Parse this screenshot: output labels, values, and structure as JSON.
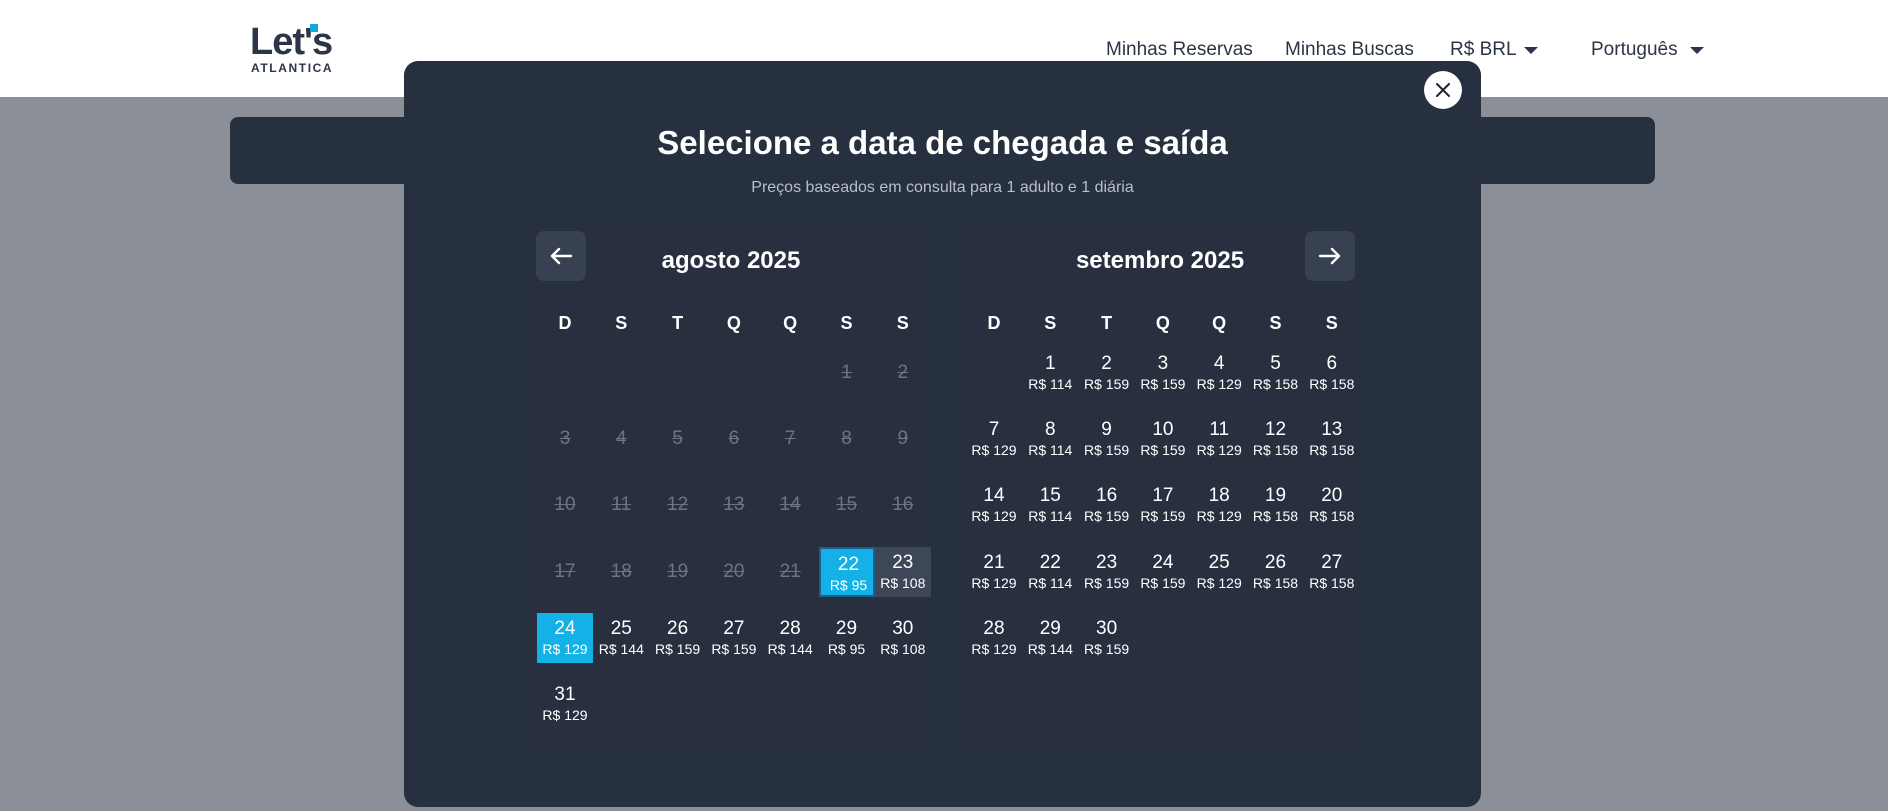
{
  "header": {
    "logo_main": "Let's",
    "logo_sub": "ATLANTICA",
    "nav": {
      "reservations": "Minhas Reservas",
      "searches": "Minhas Buscas",
      "currency": "R$ BRL",
      "language": "Português"
    }
  },
  "modal": {
    "title": "Selecione a data de chegada e saída",
    "subtitle": "Preços baseados em consulta para 1 adulto e 1 diária"
  },
  "weekdays": [
    "D",
    "S",
    "T",
    "Q",
    "Q",
    "S",
    "S"
  ],
  "months": [
    {
      "title": "agosto 2025",
      "first_weekday": 5,
      "days": [
        {
          "d": "1",
          "state": "past"
        },
        {
          "d": "2",
          "state": "past"
        },
        {
          "d": "3",
          "state": "past"
        },
        {
          "d": "4",
          "state": "past"
        },
        {
          "d": "5",
          "state": "past"
        },
        {
          "d": "6",
          "state": "past"
        },
        {
          "d": "7",
          "state": "past"
        },
        {
          "d": "8",
          "state": "past"
        },
        {
          "d": "9",
          "state": "past"
        },
        {
          "d": "10",
          "state": "past"
        },
        {
          "d": "11",
          "state": "past"
        },
        {
          "d": "12",
          "state": "past"
        },
        {
          "d": "13",
          "state": "past"
        },
        {
          "d": "14",
          "state": "past"
        },
        {
          "d": "15",
          "state": "past"
        },
        {
          "d": "16",
          "state": "past"
        },
        {
          "d": "17",
          "state": "past"
        },
        {
          "d": "18",
          "state": "past"
        },
        {
          "d": "19",
          "state": "past"
        },
        {
          "d": "20",
          "state": "past"
        },
        {
          "d": "21",
          "state": "past"
        },
        {
          "d": "22",
          "price": "R$ 95",
          "state": "checkin"
        },
        {
          "d": "23",
          "price": "R$ 108",
          "state": "range"
        },
        {
          "d": "24",
          "price": "R$ 129",
          "state": "checkout"
        },
        {
          "d": "25",
          "price": "R$ 144"
        },
        {
          "d": "26",
          "price": "R$ 159"
        },
        {
          "d": "27",
          "price": "R$ 159"
        },
        {
          "d": "28",
          "price": "R$ 144"
        },
        {
          "d": "29",
          "price": "R$ 95"
        },
        {
          "d": "30",
          "price": "R$ 108"
        },
        {
          "d": "31",
          "price": "R$ 129"
        }
      ]
    },
    {
      "title": "setembro 2025",
      "first_weekday": 1,
      "days": [
        {
          "d": "1",
          "price": "R$ 114"
        },
        {
          "d": "2",
          "price": "R$ 159"
        },
        {
          "d": "3",
          "price": "R$ 159"
        },
        {
          "d": "4",
          "price": "R$ 129"
        },
        {
          "d": "5",
          "price": "R$ 158"
        },
        {
          "d": "6",
          "price": "R$ 158"
        },
        {
          "d": "7",
          "price": "R$ 129"
        },
        {
          "d": "8",
          "price": "R$ 114"
        },
        {
          "d": "9",
          "price": "R$ 159"
        },
        {
          "d": "10",
          "price": "R$ 159"
        },
        {
          "d": "11",
          "price": "R$ 129"
        },
        {
          "d": "12",
          "price": "R$ 158"
        },
        {
          "d": "13",
          "price": "R$ 158"
        },
        {
          "d": "14",
          "price": "R$ 129"
        },
        {
          "d": "15",
          "price": "R$ 114"
        },
        {
          "d": "16",
          "price": "R$ 159"
        },
        {
          "d": "17",
          "price": "R$ 159"
        },
        {
          "d": "18",
          "price": "R$ 129"
        },
        {
          "d": "19",
          "price": "R$ 158"
        },
        {
          "d": "20",
          "price": "R$ 158"
        },
        {
          "d": "21",
          "price": "R$ 129"
        },
        {
          "d": "22",
          "price": "R$ 114"
        },
        {
          "d": "23",
          "price": "R$ 159"
        },
        {
          "d": "24",
          "price": "R$ 159"
        },
        {
          "d": "25",
          "price": "R$ 129"
        },
        {
          "d": "26",
          "price": "R$ 158"
        },
        {
          "d": "27",
          "price": "R$ 158"
        },
        {
          "d": "28",
          "price": "R$ 129"
        },
        {
          "d": "29",
          "price": "R$ 144"
        },
        {
          "d": "30",
          "price": "R$ 159"
        }
      ]
    }
  ],
  "colors": {
    "accent": "#13b1e6",
    "modal_bg": "#27303f",
    "range_bg": "#3d4757",
    "backdrop": "#8b9098"
  },
  "icons": {
    "close": "close-icon",
    "prev": "arrow-left-icon",
    "next": "arrow-right-icon",
    "dropdown": "caret-down-icon"
  }
}
